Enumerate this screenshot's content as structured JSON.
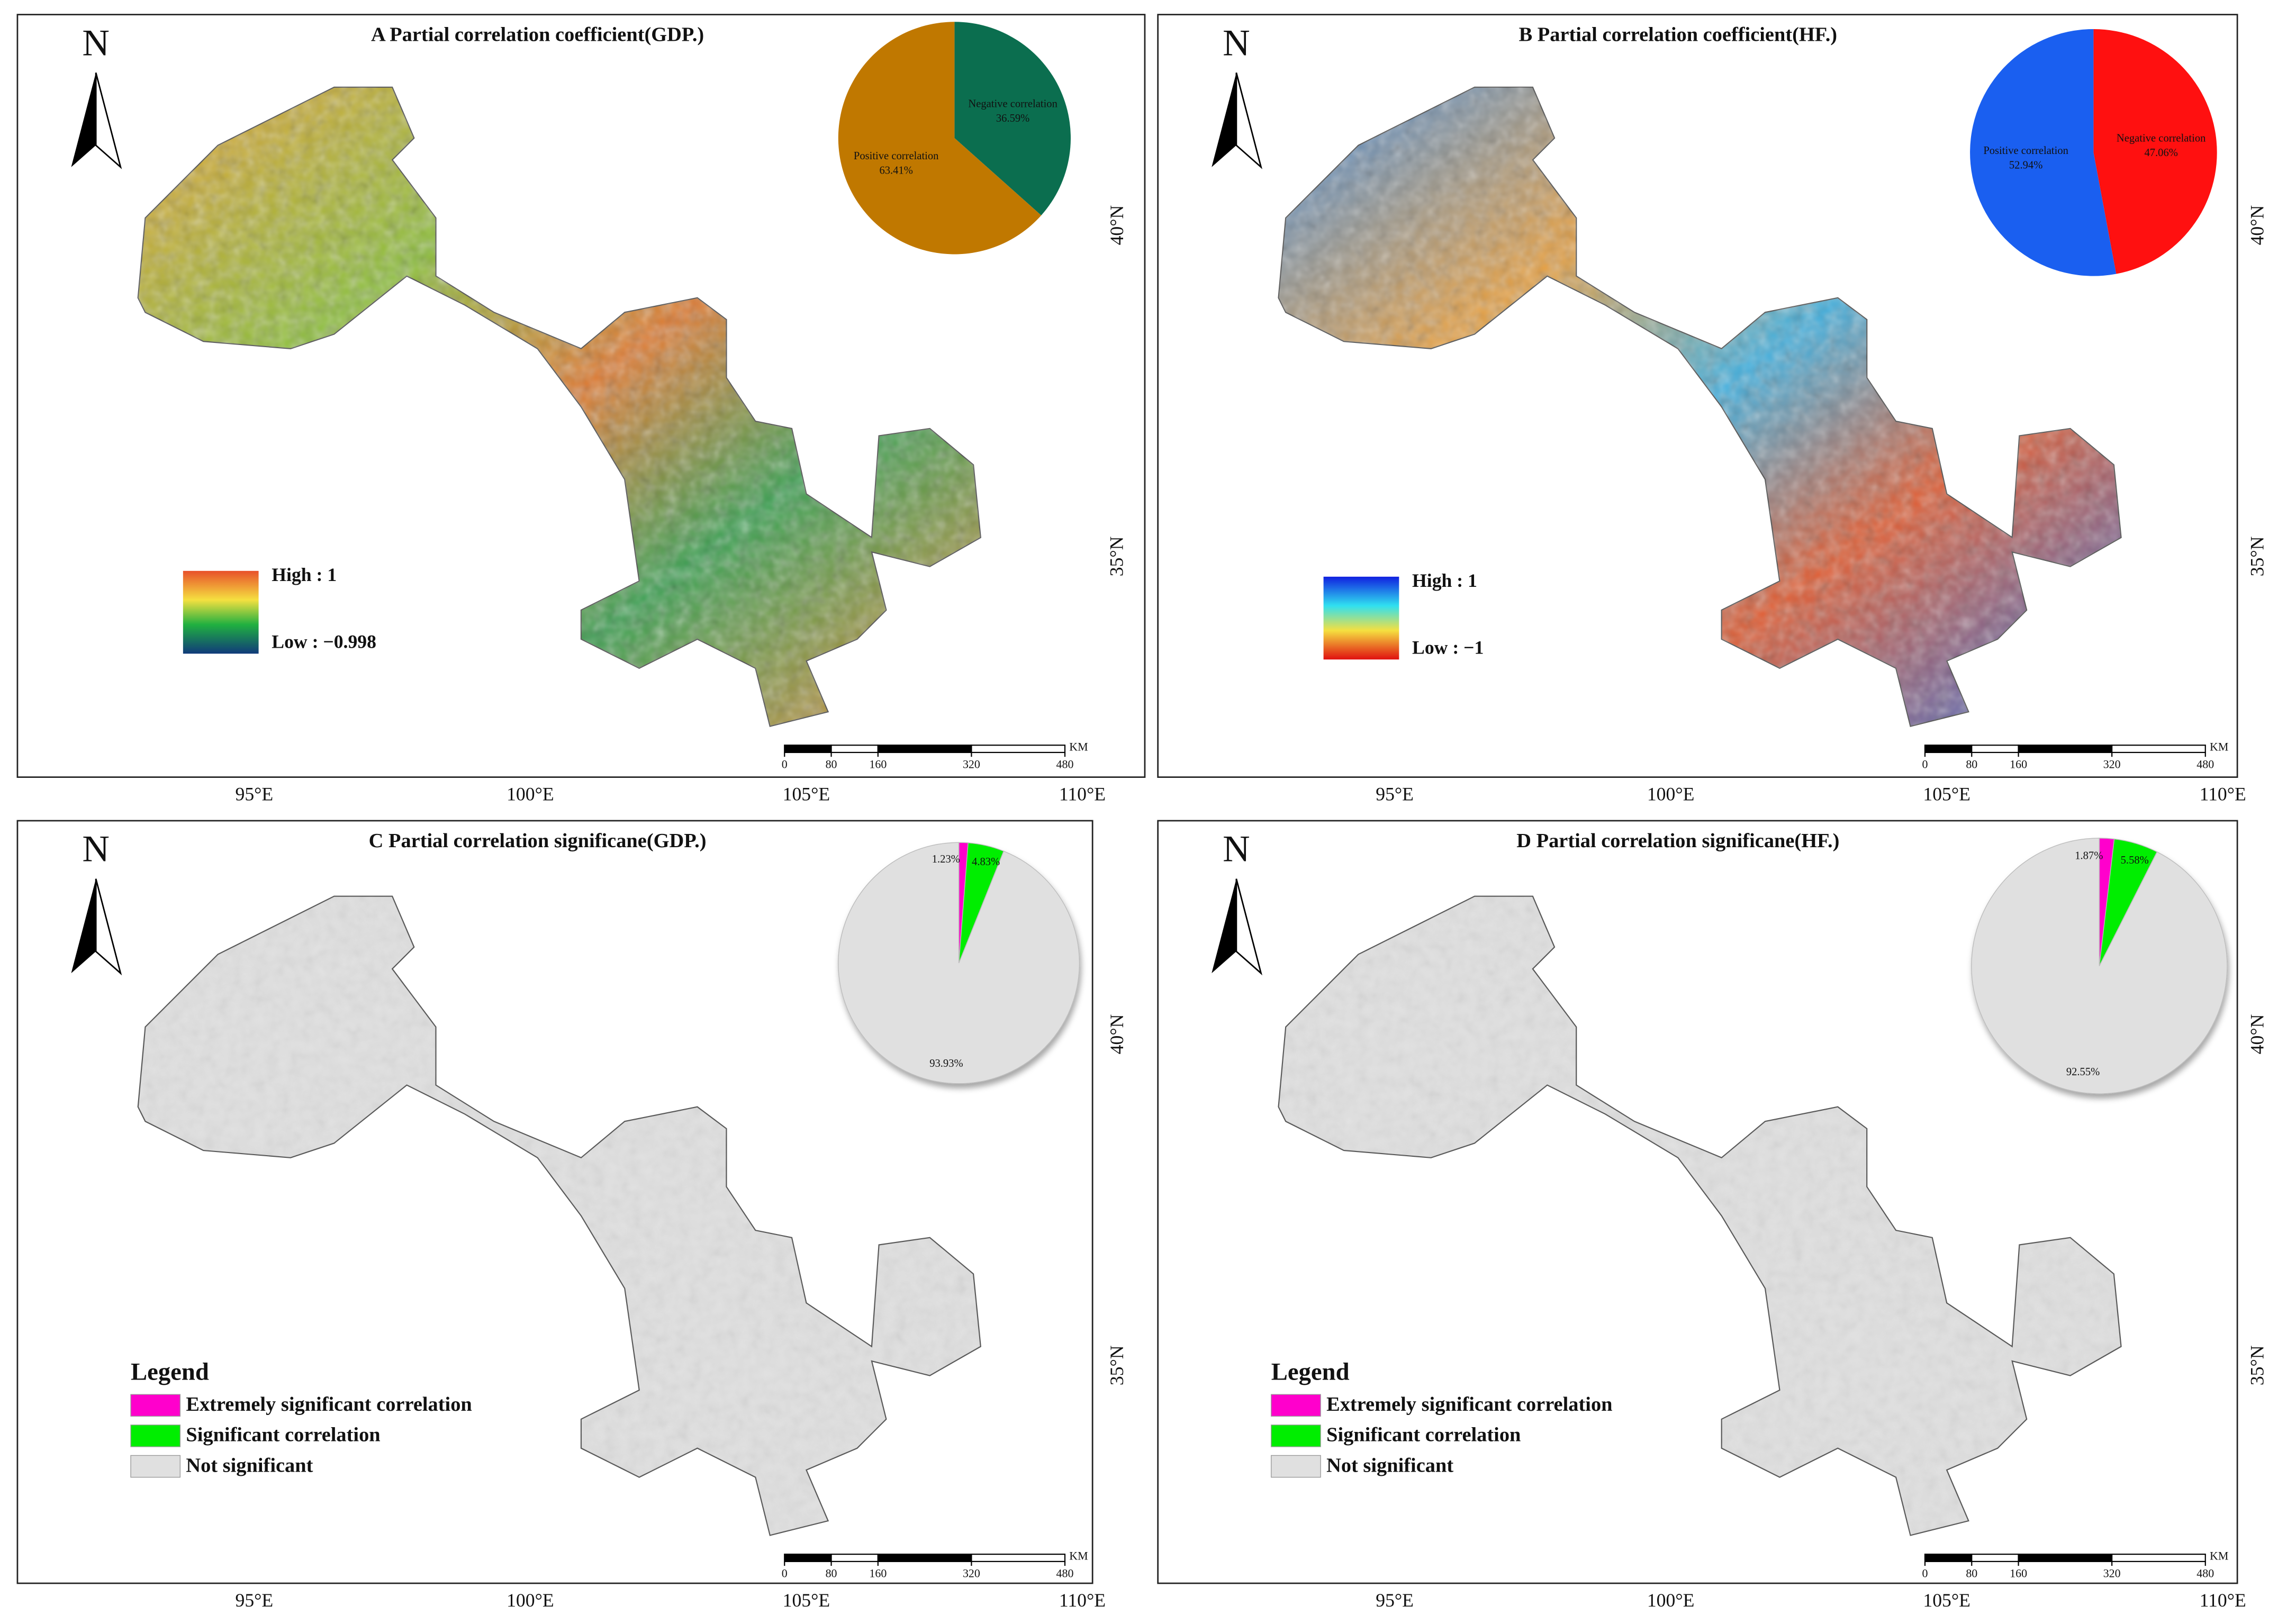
{
  "north": "N",
  "lon_ticks": [
    "95°E",
    "100°E",
    "105°E",
    "110°E"
  ],
  "lat_ticks": [
    "40°N",
    "35°N"
  ],
  "scale": {
    "ticks": [
      0,
      80,
      160,
      320,
      480
    ],
    "unit": "KM"
  },
  "panels": [
    {
      "title": "A Partial correlation coefficient(GDP.)",
      "pie": {
        "labels": [
          "Negative correlation",
          "Positive correlation"
        ],
        "values": [
          36.59,
          63.41
        ],
        "value_labels": [
          "36.59%",
          "63.41%"
        ],
        "colors": [
          "#0b6e4f",
          "#c07800"
        ]
      },
      "legend": {
        "high": "High : 1",
        "low": "Low : −0.998"
      }
    },
    {
      "title": "B Partial correlation coefficient(HF.)",
      "pie": {
        "labels": [
          "Negative correlation",
          "Positive correlation"
        ],
        "values": [
          47.06,
          52.94
        ],
        "value_labels": [
          "47.06%",
          "52.94%"
        ],
        "colors": [
          "#ff1010",
          "#1a5ff0"
        ]
      },
      "legend": {
        "high": "High : 1",
        "low": "Low : −1"
      }
    },
    {
      "title": "C Partial correlation significane(GDP.)",
      "pie": {
        "values": [
          1.23,
          4.83,
          93.93
        ],
        "value_labels": [
          "1.23%",
          "4.83%",
          "93.93%"
        ],
        "colors": [
          "#ff00cc",
          "#00ee00",
          "#e0e0e0"
        ]
      },
      "legend": {
        "title": "Legend",
        "items": [
          {
            "label": "Extremely significant correlation",
            "color": "#ff00cc"
          },
          {
            "label": "Significant correlation",
            "color": "#00ee00"
          },
          {
            "label": "Not significant",
            "color": "#e0e0e0"
          }
        ]
      }
    },
    {
      "title": "D Partial correlation significane(HF.)",
      "pie": {
        "values": [
          1.87,
          5.58,
          92.55
        ],
        "value_labels": [
          "1.87%",
          "5.58%",
          "92.55%"
        ],
        "colors": [
          "#ff00cc",
          "#00ee00",
          "#e0e0e0"
        ]
      },
      "legend": {
        "title": "Legend",
        "items": [
          {
            "label": "Extremely significant correlation",
            "color": "#ff00cc"
          },
          {
            "label": "Significant correlation",
            "color": "#00ee00"
          },
          {
            "label": "Not significant",
            "color": "#e0e0e0"
          }
        ]
      }
    }
  ]
}
